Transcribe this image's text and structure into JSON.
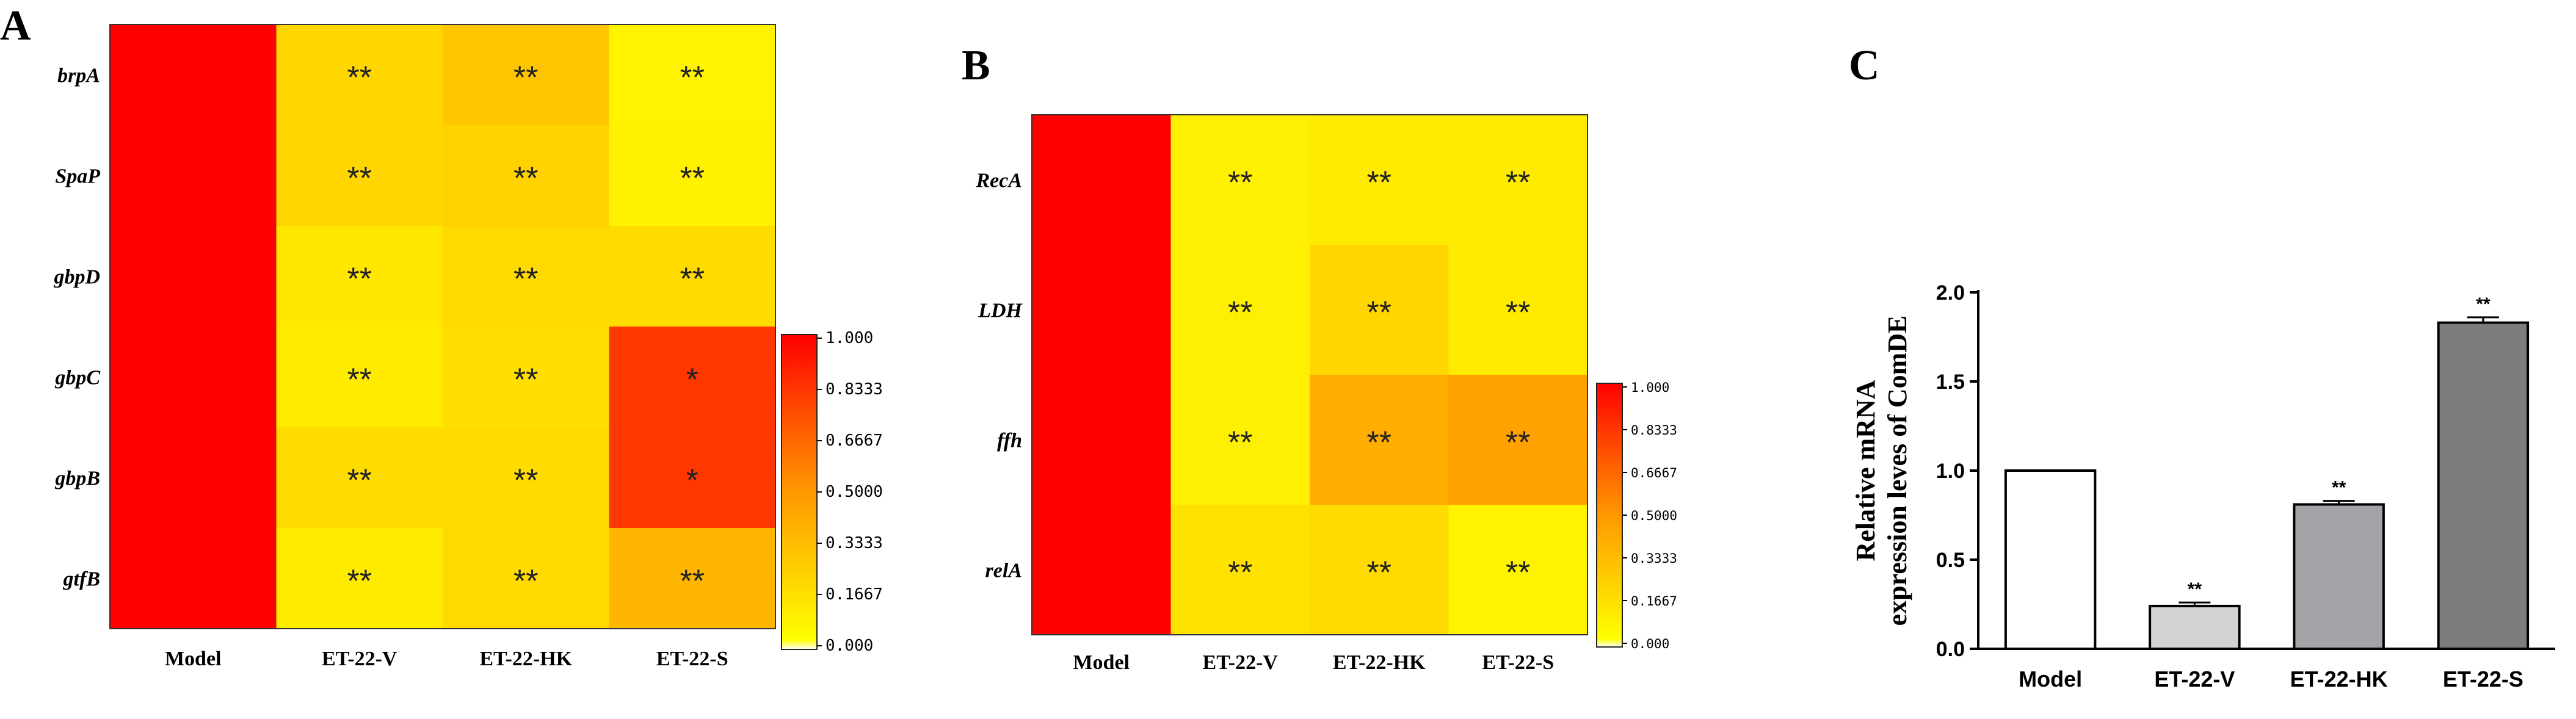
{
  "panels": {
    "A": {
      "letter": "A"
    },
    "B": {
      "letter": "B"
    },
    "C": {
      "letter": "C"
    }
  },
  "chart_data": [
    {
      "id": "A",
      "type": "heatmap",
      "title": "A",
      "rows": [
        "brpA",
        "SpaP",
        "gbpD",
        "gbpC",
        "gbpB",
        "gtfB"
      ],
      "columns": [
        "Model",
        "ET-22-V",
        "ET-22-HK",
        "ET-22-S"
      ],
      "values": [
        [
          1.0,
          0.2,
          0.28,
          0.06
        ],
        [
          1.0,
          0.2,
          0.22,
          0.07
        ],
        [
          1.0,
          0.12,
          0.18,
          0.17
        ],
        [
          1.0,
          0.1,
          0.16,
          0.82
        ],
        [
          1.0,
          0.17,
          0.17,
          0.82
        ],
        [
          1.0,
          0.1,
          0.18,
          0.36
        ]
      ],
      "annotations": [
        [
          "",
          "**",
          "**",
          "**"
        ],
        [
          "",
          "**",
          "**",
          "**"
        ],
        [
          "",
          "**",
          "**",
          "**"
        ],
        [
          "",
          "**",
          "**",
          "*"
        ],
        [
          "",
          "**",
          "**",
          "*"
        ],
        [
          "",
          "**",
          "**",
          "**"
        ]
      ],
      "colorbar": {
        "ticks": [
          "1.000",
          "0.8333",
          "0.6667",
          "0.5000",
          "0.3333",
          "0.1667",
          "0.000"
        ],
        "range": [
          0,
          1
        ],
        "colors": [
          "#ffffff",
          "#ffff00",
          "#ff9900",
          "#ff0000"
        ]
      }
    },
    {
      "id": "B",
      "type": "heatmap",
      "title": "B",
      "rows": [
        "RecA",
        "LDH",
        "ffh",
        "relA"
      ],
      "columns": [
        "Model",
        "ET-22-V",
        "ET-22-HK",
        "ET-22-S"
      ],
      "values": [
        [
          1.0,
          0.08,
          0.1,
          0.1
        ],
        [
          1.0,
          0.08,
          0.2,
          0.1
        ],
        [
          1.0,
          0.08,
          0.4,
          0.46
        ],
        [
          1.0,
          0.14,
          0.18,
          0.06
        ]
      ],
      "annotations": [
        [
          "",
          "**",
          "**",
          "**"
        ],
        [
          "",
          "**",
          "**",
          "**"
        ],
        [
          "",
          "**",
          "**",
          "**"
        ],
        [
          "",
          "**",
          "**",
          "**"
        ]
      ],
      "colorbar": {
        "ticks": [
          "1.000",
          "0.8333",
          "0.6667",
          "0.5000",
          "0.3333",
          "0.1667",
          "0.000"
        ],
        "range": [
          0,
          1
        ],
        "colors": [
          "#ffffff",
          "#ffff00",
          "#ff9900",
          "#ff0000"
        ]
      }
    },
    {
      "id": "C",
      "type": "bar",
      "title": "C",
      "categories": [
        "Model",
        "ET-22-V",
        "ET-22-HK",
        "ET-22-S"
      ],
      "values": [
        1.0,
        0.24,
        0.81,
        1.83
      ],
      "errors": [
        0.0,
        0.02,
        0.02,
        0.03
      ],
      "significance": [
        "",
        "**",
        "**",
        "**"
      ],
      "bar_colors": [
        "#ffffff",
        "#d4d4d4",
        "#a3a3a8",
        "#7c7c7c"
      ],
      "ylabel_line1": "Relative mRNA",
      "ylabel_line2": "expression leves of ComDE",
      "xlabel": "",
      "ylim": [
        0,
        2.0
      ],
      "yticks": [
        "0.0",
        "0.5",
        "1.0",
        "1.5",
        "2.0"
      ]
    }
  ]
}
